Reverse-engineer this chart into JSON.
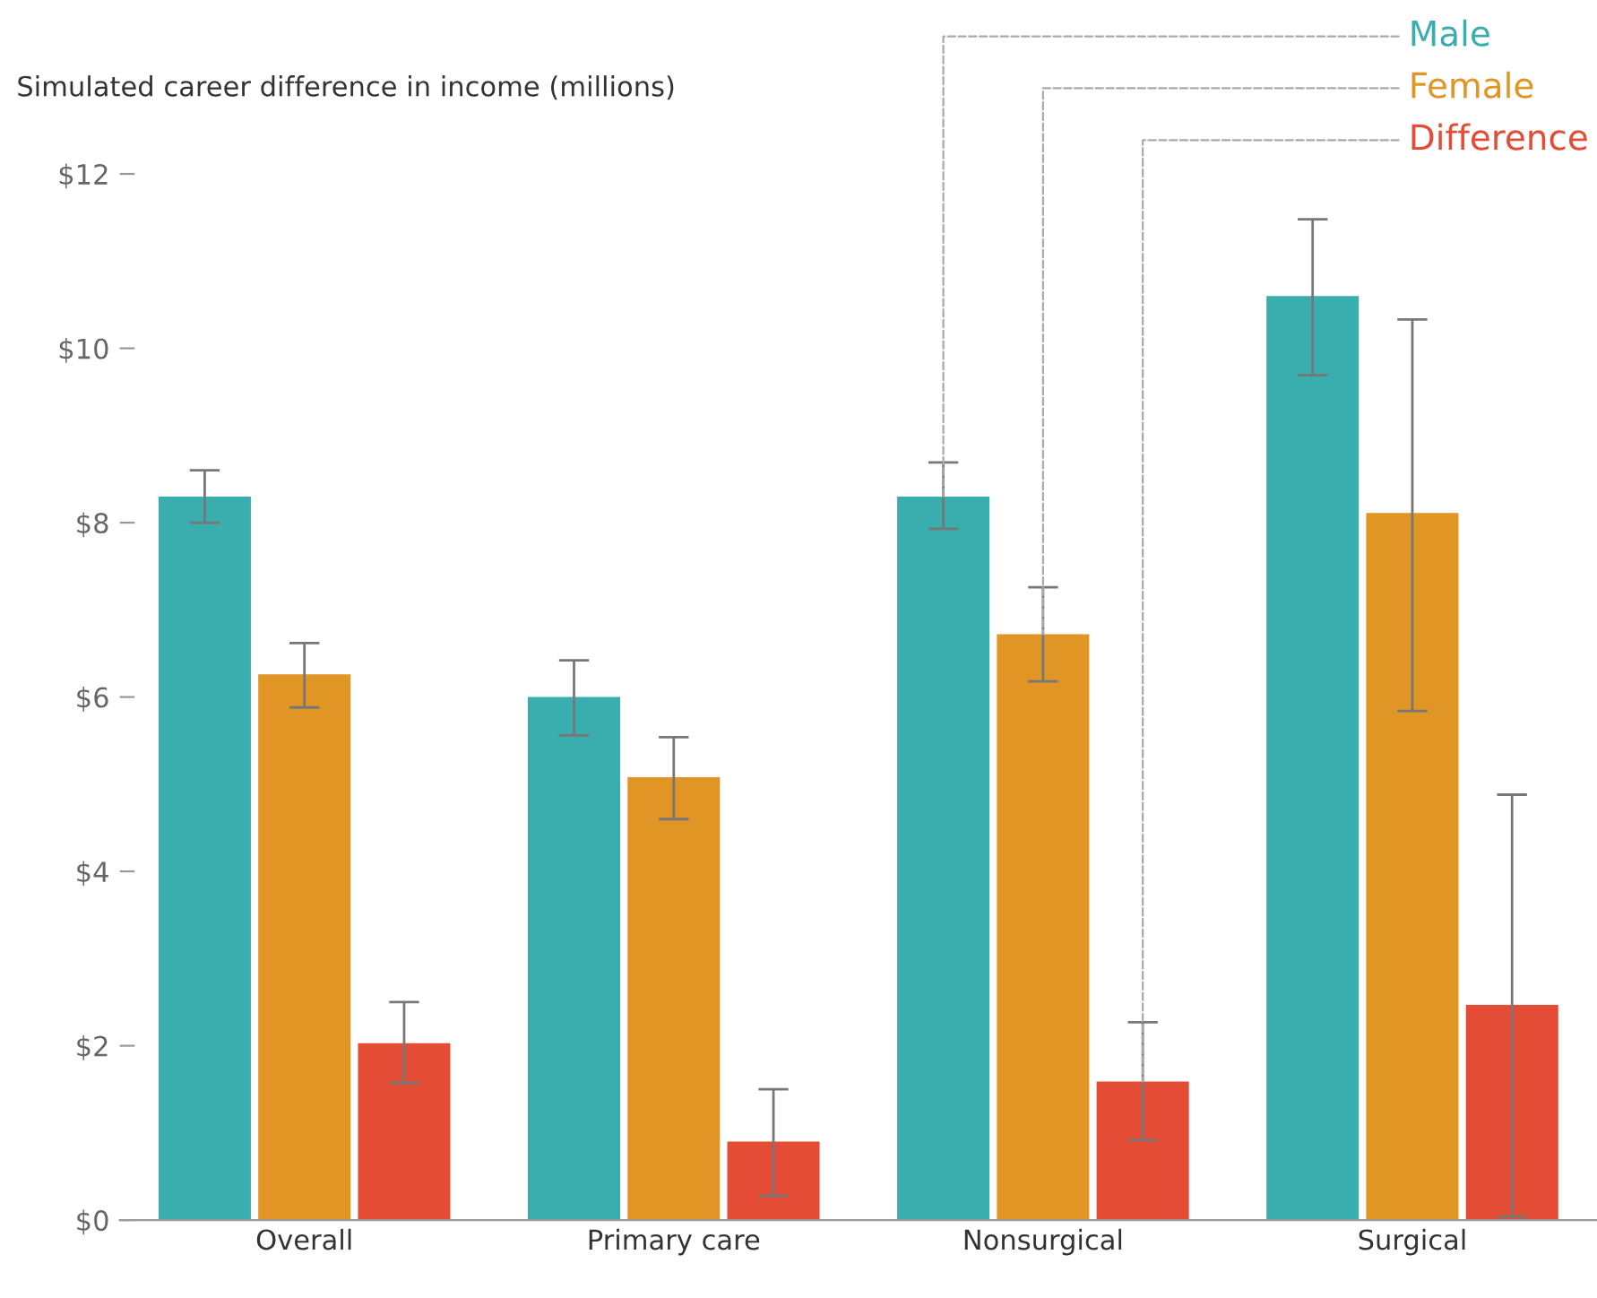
{
  "chart_data": {
    "type": "bar",
    "title": "Simulated career difference in income (millions)",
    "categories": [
      "Overall",
      "Primary care",
      "Nonsurgical",
      "Surgical"
    ],
    "series": [
      {
        "name": "Male",
        "color": "#3aadaf",
        "values": [
          8.3,
          6.0,
          8.3,
          10.6
        ],
        "errors": [
          [
            8.0,
            8.6
          ],
          [
            5.56,
            6.42
          ],
          [
            7.93,
            8.69
          ],
          [
            9.69,
            11.48
          ]
        ]
      },
      {
        "name": "Female",
        "color": "#e09525",
        "values": [
          6.26,
          5.08,
          6.72,
          8.11
        ],
        "errors": [
          [
            5.88,
            6.62
          ],
          [
            4.6,
            5.54
          ],
          [
            6.18,
            7.26
          ],
          [
            5.84,
            10.33
          ]
        ]
      },
      {
        "name": "Difference",
        "color": "#e44c35",
        "values": [
          2.03,
          0.9,
          1.59,
          2.47
        ],
        "errors": [
          [
            1.57,
            2.5
          ],
          [
            0.28,
            1.5
          ],
          [
            0.92,
            2.27
          ],
          [
            0.04,
            4.88
          ]
        ]
      }
    ],
    "ylim": [
      0,
      12
    ],
    "yticks": [
      {
        "value": 0,
        "label": "$0"
      },
      {
        "value": 2,
        "label": "$2"
      },
      {
        "value": 4,
        "label": "$4"
      },
      {
        "value": 6,
        "label": "$6"
      },
      {
        "value": 8,
        "label": "$8"
      },
      {
        "value": 10,
        "label": "$10"
      },
      {
        "value": 12,
        "label": "$12"
      }
    ],
    "grid": false,
    "legend": "top right"
  }
}
